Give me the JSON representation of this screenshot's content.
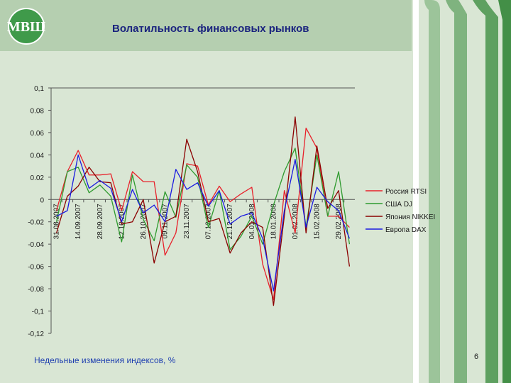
{
  "slide": {
    "title": "Волатильность финансовых рынков",
    "caption": "Недельные изменения индексов, %",
    "page_number": "6"
  },
  "logo": {
    "text": "МВШ",
    "color": "#3f9a4a"
  },
  "chart_data": {
    "type": "line",
    "title": "",
    "xlabel": "",
    "ylabel": "",
    "ylim": [
      -0.12,
      0.1
    ],
    "yticks": [
      0.1,
      0.08,
      0.06,
      0.04,
      0.02,
      0,
      -0.02,
      -0.04,
      -0.06,
      -0.08,
      -0.1,
      -0.12
    ],
    "ytick_labels": [
      "0,1",
      "0.08",
      "0.06",
      "0.04",
      "0.02",
      "0",
      "-0.02",
      "-0.04",
      "-0.06",
      "-0.08",
      "-0,1",
      "-0,12"
    ],
    "x_tick_labels": [
      "31.08.2007",
      "14.09.2007",
      "28.09.2007",
      "12.10.2007",
      "26.10.2007",
      "09.11.2007",
      "23.11.2007",
      "07.12.2007",
      "21.12.2007",
      "04.01.2008",
      "18.01.2008",
      "01.02.2008",
      "15.02.2008",
      "29.02.2008"
    ],
    "n_points": 28,
    "legend_position": "right",
    "grid": false,
    "series": [
      {
        "name": "Россия RTSI",
        "color": "#e8202a",
        "values": [
          -0.01,
          0.025,
          0.044,
          0.022,
          0.022,
          0.023,
          -0.01,
          0.025,
          0.016,
          0.016,
          -0.05,
          -0.03,
          0.032,
          0.03,
          -0.005,
          0.012,
          -0.002,
          0.005,
          0.011,
          -0.058,
          -0.09,
          0.008,
          -0.03,
          0.064,
          0.046,
          -0.015,
          -0.015,
          -0.025
        ]
      },
      {
        "name": "США DJ",
        "color": "#2e9a2e",
        "values": [
          -0.02,
          0.025,
          0.029,
          0.006,
          0.013,
          0.003,
          -0.038,
          0.022,
          -0.018,
          -0.037,
          0.007,
          -0.016,
          0.031,
          0.02,
          -0.025,
          0.008,
          -0.045,
          -0.033,
          -0.015,
          -0.04,
          -0.005,
          0.025,
          0.046,
          -0.025,
          0.04,
          -0.015,
          0.025,
          -0.04
        ]
      },
      {
        "name": "Япония NIKKEI",
        "color": "#8b0000",
        "values": [
          -0.03,
          0.003,
          0.012,
          0.029,
          0.016,
          0.015,
          -0.022,
          -0.02,
          0,
          -0.057,
          -0.02,
          -0.015,
          0.054,
          0.025,
          -0.02,
          -0.017,
          -0.048,
          -0.03,
          -0.02,
          -0.025,
          -0.095,
          -0.015,
          0.074,
          -0.03,
          0.048,
          -0.008,
          0.008,
          -0.06
        ]
      },
      {
        "name": "Европа DAX",
        "color": "#1a1ae0",
        "values": [
          -0.015,
          -0.01,
          0.04,
          0.01,
          0.017,
          0.01,
          -0.02,
          0.009,
          -0.012,
          -0.005,
          -0.02,
          0.027,
          0.009,
          0.015,
          -0.006,
          0.008,
          -0.022,
          -0.015,
          -0.012,
          -0.035,
          -0.082,
          -0.01,
          0.036,
          -0.025,
          0.011,
          -0.002,
          -0.01,
          -0.035
        ]
      }
    ]
  }
}
